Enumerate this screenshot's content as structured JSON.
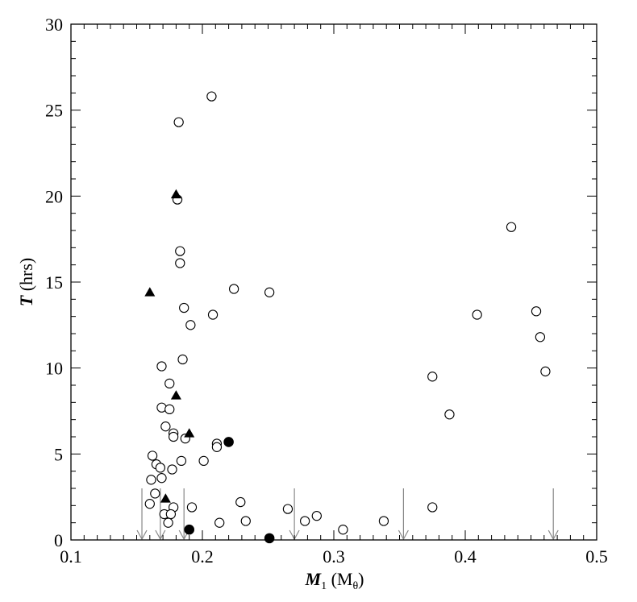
{
  "chart_data": {
    "type": "scatter",
    "xlim": [
      0.1,
      0.5
    ],
    "ylim": [
      0,
      30
    ],
    "x_ticks": [
      "0.1",
      "0.2",
      "0.3",
      "0.4",
      "0.5"
    ],
    "y_ticks": [
      "0",
      "5",
      "10",
      "15",
      "20",
      "25",
      "30"
    ],
    "xlabel": {
      "symbol": "M",
      "subscript": "1",
      "unit_open": " (M",
      "unit_sub": "θ",
      "unit_close": ")"
    },
    "ylabel": {
      "symbol": "T",
      "unit": " (hrs)"
    },
    "grid": false,
    "colors": {
      "axis": "#000000",
      "marker": "#000000",
      "arrow": "#888888"
    },
    "series": [
      {
        "marker": "open-circle",
        "points": [
          [
            0.207,
            25.8
          ],
          [
            0.182,
            24.3
          ],
          [
            0.181,
            19.8
          ],
          [
            0.183,
            16.8
          ],
          [
            0.183,
            16.1
          ],
          [
            0.224,
            14.6
          ],
          [
            0.251,
            14.4
          ],
          [
            0.186,
            13.5
          ],
          [
            0.208,
            13.1
          ],
          [
            0.191,
            12.5
          ],
          [
            0.185,
            10.5
          ],
          [
            0.169,
            10.1
          ],
          [
            0.175,
            9.1
          ],
          [
            0.169,
            7.7
          ],
          [
            0.175,
            7.6
          ],
          [
            0.172,
            6.6
          ],
          [
            0.178,
            6.2
          ],
          [
            0.178,
            6.0
          ],
          [
            0.187,
            5.9
          ],
          [
            0.211,
            5.6
          ],
          [
            0.211,
            5.4
          ],
          [
            0.162,
            4.9
          ],
          [
            0.201,
            4.6
          ],
          [
            0.184,
            4.6
          ],
          [
            0.165,
            4.4
          ],
          [
            0.168,
            4.2
          ],
          [
            0.177,
            4.1
          ],
          [
            0.169,
            3.6
          ],
          [
            0.161,
            3.5
          ],
          [
            0.164,
            2.7
          ],
          [
            0.16,
            2.1
          ],
          [
            0.229,
            2.2
          ],
          [
            0.178,
            1.9
          ],
          [
            0.192,
            1.9
          ],
          [
            0.171,
            1.5
          ],
          [
            0.176,
            1.5
          ],
          [
            0.174,
            1.0
          ],
          [
            0.213,
            1.0
          ],
          [
            0.233,
            1.1
          ],
          [
            0.265,
            1.8
          ],
          [
            0.278,
            1.1
          ],
          [
            0.287,
            1.4
          ],
          [
            0.307,
            0.6
          ],
          [
            0.338,
            1.1
          ],
          [
            0.375,
            1.9
          ],
          [
            0.375,
            9.5
          ],
          [
            0.388,
            7.3
          ],
          [
            0.409,
            13.1
          ],
          [
            0.435,
            18.2
          ],
          [
            0.454,
            13.3
          ],
          [
            0.457,
            11.8
          ],
          [
            0.461,
            9.8
          ]
        ]
      },
      {
        "marker": "filled-triangle",
        "points": [
          [
            0.18,
            20.1
          ],
          [
            0.16,
            14.4
          ],
          [
            0.18,
            8.4
          ],
          [
            0.19,
            6.2
          ],
          [
            0.172,
            2.4
          ]
        ]
      },
      {
        "marker": "filled-circle",
        "points": [
          [
            0.22,
            5.7
          ],
          [
            0.19,
            0.6
          ],
          [
            0.251,
            0.1
          ]
        ]
      }
    ],
    "upper_limit_arrows": [
      {
        "x": 0.154,
        "y": 3.0
      },
      {
        "x": 0.168,
        "y": 3.0
      },
      {
        "x": 0.186,
        "y": 3.0
      },
      {
        "x": 0.27,
        "y": 3.0
      },
      {
        "x": 0.353,
        "y": 3.0
      },
      {
        "x": 0.467,
        "y": 3.0
      }
    ]
  }
}
